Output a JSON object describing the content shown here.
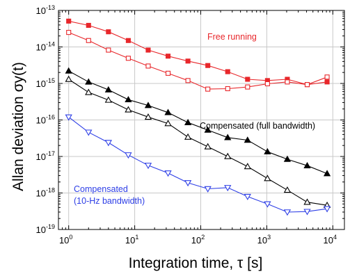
{
  "chart_data": {
    "type": "line",
    "xlabel": "Integration time, τ [s]",
    "ylabel": "Allan deviation σy(t)",
    "x_scale": "log",
    "y_scale": "log",
    "xlim": [
      0.7,
      15000
    ],
    "ylim": [
      1e-19,
      1e-13
    ],
    "x_ticks": [
      {
        "value": 1,
        "base": "10",
        "exp": "0"
      },
      {
        "value": 10,
        "base": "10",
        "exp": "1"
      },
      {
        "value": 100,
        "base": "10",
        "exp": "2"
      },
      {
        "value": 1000,
        "base": "10",
        "exp": "3"
      },
      {
        "value": 10000,
        "base": "10",
        "exp": "4"
      }
    ],
    "y_ticks": [
      {
        "value": 1e-13,
        "base": "10",
        "exp": "-13"
      },
      {
        "value": 1e-14,
        "base": "10",
        "exp": "-14"
      },
      {
        "value": 1e-15,
        "base": "10",
        "exp": "-15"
      },
      {
        "value": 1e-16,
        "base": "10",
        "exp": "-16"
      },
      {
        "value": 1e-17,
        "base": "10",
        "exp": "-17"
      },
      {
        "value": 1e-18,
        "base": "10",
        "exp": "-18"
      },
      {
        "value": 1e-19,
        "base": "10",
        "exp": "-19"
      }
    ],
    "grid": true,
    "series": [
      {
        "color": "#e8272b",
        "marker": "square-filled",
        "x": [
          1,
          2,
          4,
          8,
          16,
          32,
          64,
          128,
          256,
          512,
          1024,
          2048,
          4096,
          8192
        ],
        "y": [
          5.1e-14,
          3.9e-14,
          2.6e-14,
          1.5e-14,
          8.2e-15,
          5.6e-15,
          4.1e-15,
          3.1e-15,
          2.1e-15,
          1.3e-15,
          1.2e-15,
          1.3e-15,
          9.3e-16,
          1.1e-15
        ]
      },
      {
        "color": "#e8272b",
        "marker": "square-open",
        "x": [
          1,
          2,
          4,
          8,
          16,
          32,
          64,
          128,
          256,
          512,
          1024,
          2048,
          4096,
          8192
        ],
        "y": [
          2.5e-14,
          1.5e-14,
          8.2e-15,
          4.9e-15,
          3e-15,
          1.9e-15,
          1.2e-15,
          7e-16,
          7.2e-16,
          8e-16,
          9.8e-16,
          1.1e-15,
          9.3e-16,
          1.5e-15
        ]
      },
      {
        "color": "#000000",
        "marker": "triangle-up-filled",
        "x": [
          1,
          2,
          4,
          8,
          16,
          32,
          64,
          128,
          256,
          512,
          1024,
          2048,
          4096,
          8192
        ],
        "y": [
          2.2e-15,
          1.1e-15,
          6.7e-16,
          3.6e-16,
          2.5e-16,
          1.6e-16,
          8.5e-17,
          5.3e-17,
          3.3e-17,
          2.8e-17,
          1.35e-17,
          8.4e-18,
          5.6e-18,
          3.4e-18
        ]
      },
      {
        "color": "#000000",
        "marker": "triangle-up-open",
        "x": [
          1,
          2,
          4,
          8,
          16,
          32,
          64,
          128,
          256,
          512,
          1024,
          2048,
          4096,
          8192
        ],
        "y": [
          1.3e-15,
          5.7e-16,
          3.5e-16,
          1.9e-16,
          1.2e-16,
          8e-17,
          3.4e-17,
          1.85e-17,
          1e-17,
          5.3e-18,
          2.5e-18,
          1.2e-18,
          5.6e-19,
          4.6e-19
        ]
      },
      {
        "color": "#2d3ee6",
        "marker": "triangle-down-open",
        "x": [
          1,
          2,
          4,
          8,
          16,
          32,
          64,
          128,
          256,
          512,
          1024,
          2048,
          4096,
          8192
        ],
        "y": [
          1.2e-16,
          4.6e-17,
          2.4e-17,
          1.1e-17,
          5.7e-18,
          3.5e-18,
          1.9e-18,
          1.3e-18,
          1.4e-18,
          8e-19,
          5e-19,
          3e-19,
          3.1e-19,
          3.7e-19
        ]
      }
    ],
    "annotations": [
      {
        "text": "Free running",
        "color": "#e8272b"
      },
      {
        "text": "Compensated (full bandwidth)",
        "color": "#000000"
      },
      {
        "text": "Compensated",
        "color": "#2d3ee6"
      },
      {
        "text": "(10-Hz bandwidth)",
        "color": "#2d3ee6"
      }
    ]
  }
}
